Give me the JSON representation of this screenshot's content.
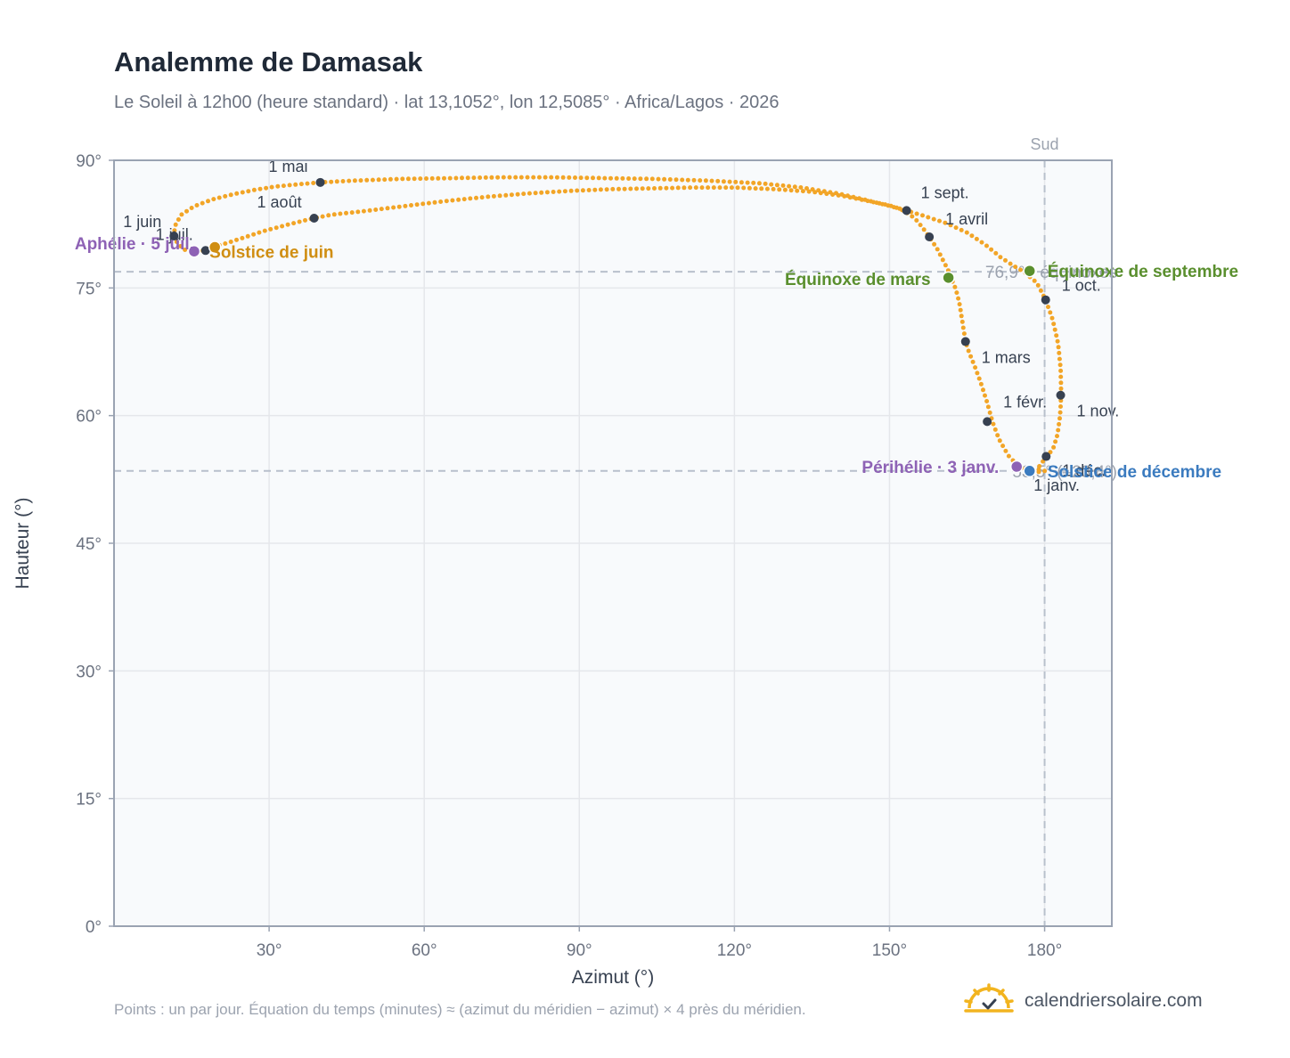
{
  "title": "Analemme de Damasak",
  "subtitle": "Le Soleil à 12h00 (heure standard) · lat 13,1052°, lon 12,5085° · Africa/Lagos · 2026",
  "footnote": "Points : un par jour. Équation du temps (minutes) ≈ (azimut du méridien − azimut) × 4 près du méridien.",
  "brand": {
    "name": "calendriersolaire.com",
    "icon": "sun-logo-icon"
  },
  "colors": {
    "curve": "#f2a527",
    "month_marker": "#374151",
    "equinox": "#5a8f2e",
    "june_solstice": "#d08e12",
    "december_solstice": "#3b7bbf",
    "apsis": "#8e62b5",
    "grid": "#e5e7eb",
    "plot_bg": "#f8fafc",
    "frame": "#9aa3b2"
  },
  "chart_data": {
    "type": "scatter",
    "xlabel": "Azimut (°)",
    "ylabel": "Hauteur (°)",
    "xlim": [
      0,
      193
    ],
    "ylim": [
      0,
      90
    ],
    "x_ticks": [
      "30°",
      "60°",
      "90°",
      "120°",
      "150°",
      "180°"
    ],
    "x_tick_values": [
      30,
      60,
      90,
      120,
      150,
      180
    ],
    "y_ticks": [
      "0°",
      "15°",
      "30°",
      "45°",
      "60°",
      "75°",
      "90°"
    ],
    "y_tick_values": [
      0,
      15,
      30,
      45,
      60,
      75,
      90
    ],
    "grid": true,
    "south_line": {
      "label": "Sud",
      "azimuth": 180
    },
    "reference_lines": [
      {
        "altitude": 76.9,
        "label": "76,9° · équinoxes"
      },
      {
        "altitude": 53.5,
        "label": "53,5° (–23,4°)"
      }
    ],
    "analemma_path": [
      [
        180.0,
        53.5
      ],
      [
        178.0,
        53.3
      ],
      [
        176.5,
        53.6
      ],
      [
        175.0,
        54.0
      ],
      [
        173.0,
        55.3
      ],
      [
        171.2,
        57.2
      ],
      [
        169.9,
        59.3
      ],
      [
        168.9,
        61.5
      ],
      [
        167.8,
        63.6
      ],
      [
        166.6,
        65.6
      ],
      [
        165.4,
        67.4
      ],
      [
        164.7,
        68.7
      ],
      [
        164.1,
        71.0
      ],
      [
        163.5,
        73.3
      ],
      [
        162.8,
        74.9
      ],
      [
        162.0,
        76.0
      ],
      [
        161.4,
        77.0
      ],
      [
        160.4,
        78.2
      ],
      [
        159.3,
        79.5
      ],
      [
        157.7,
        81.0
      ],
      [
        156.5,
        82.0
      ],
      [
        155.3,
        82.9
      ],
      [
        154.0,
        83.6
      ],
      [
        152.0,
        84.3
      ],
      [
        150.0,
        84.7
      ],
      [
        146.0,
        85.2
      ],
      [
        141.0,
        85.8
      ],
      [
        135.0,
        86.3
      ],
      [
        128.0,
        86.6
      ],
      [
        120.0,
        86.8
      ],
      [
        112.0,
        86.8
      ],
      [
        104.0,
        86.7
      ],
      [
        96.0,
        86.6
      ],
      [
        88.0,
        86.4
      ],
      [
        80.0,
        86.1
      ],
      [
        72.0,
        85.7
      ],
      [
        64.0,
        85.2
      ],
      [
        56.0,
        84.6
      ],
      [
        48.0,
        84.0
      ],
      [
        42.0,
        83.6
      ],
      [
        38.7,
        83.2
      ],
      [
        34.0,
        82.5
      ],
      [
        29.0,
        81.7
      ],
      [
        25.0,
        80.9
      ],
      [
        22.0,
        80.3
      ],
      [
        19.5,
        79.9
      ],
      [
        17.7,
        79.4
      ],
      [
        15.5,
        79.3
      ],
      [
        13.5,
        79.5
      ],
      [
        12.2,
        80.3
      ],
      [
        11.6,
        81.1
      ],
      [
        11.8,
        82.3
      ],
      [
        13.0,
        83.6
      ],
      [
        15.5,
        84.6
      ],
      [
        19.0,
        85.4
      ],
      [
        23.0,
        86.0
      ],
      [
        27.0,
        86.5
      ],
      [
        31.0,
        86.9
      ],
      [
        36.0,
        87.2
      ],
      [
        39.9,
        87.4
      ],
      [
        46.0,
        87.6
      ],
      [
        55.0,
        87.8
      ],
      [
        65.0,
        87.9
      ],
      [
        75.0,
        88.0
      ],
      [
        85.0,
        88.0
      ],
      [
        95.0,
        87.9
      ],
      [
        105.0,
        87.8
      ],
      [
        115.0,
        87.6
      ],
      [
        125.0,
        87.3
      ],
      [
        133.0,
        86.8
      ],
      [
        140.0,
        86.1
      ],
      [
        145.0,
        85.4
      ],
      [
        149.0,
        84.8
      ],
      [
        153.3,
        84.1
      ],
      [
        157.0,
        83.4
      ],
      [
        161.0,
        82.6
      ],
      [
        165.0,
        81.5
      ],
      [
        168.5,
        80.1
      ],
      [
        171.5,
        78.6
      ],
      [
        174.0,
        77.6
      ],
      [
        176.0,
        76.9
      ],
      [
        178.5,
        75.6
      ],
      [
        180.2,
        73.6
      ],
      [
        181.6,
        71.2
      ],
      [
        182.6,
        68.5
      ],
      [
        183.1,
        65.5
      ],
      [
        183.2,
        62.4
      ],
      [
        183.0,
        60.0
      ],
      [
        182.5,
        57.8
      ],
      [
        181.6,
        56.0
      ],
      [
        180.3,
        55.2
      ],
      [
        179.2,
        54.2
      ],
      [
        178.5,
        53.7
      ],
      [
        180.0,
        53.5
      ]
    ],
    "month_markers": [
      {
        "label": "1 janv.",
        "azimuth": 177.2,
        "altitude": 53.5
      },
      {
        "label": "1 févr.",
        "azimuth": 168.9,
        "altitude": 59.3
      },
      {
        "label": "1 mars",
        "azimuth": 164.7,
        "altitude": 68.7
      },
      {
        "label": "1 avril",
        "azimuth": 157.7,
        "altitude": 81.0
      },
      {
        "label": "1 mai",
        "azimuth": 39.9,
        "altitude": 87.4
      },
      {
        "label": "1 juin",
        "azimuth": 11.6,
        "altitude": 81.1
      },
      {
        "label": "1 juil.",
        "azimuth": 17.7,
        "altitude": 79.4
      },
      {
        "label": "1 août",
        "azimuth": 38.7,
        "altitude": 83.2
      },
      {
        "label": "1 sept.",
        "azimuth": 153.3,
        "altitude": 84.1
      },
      {
        "label": "1 oct.",
        "azimuth": 180.2,
        "altitude": 73.6
      },
      {
        "label": "1 nov.",
        "azimuth": 183.1,
        "altitude": 62.4
      },
      {
        "label": "1 déc.",
        "azimuth": 180.3,
        "altitude": 55.2
      }
    ],
    "events": [
      {
        "label": "Équinoxe de mars",
        "azimuth": 161.4,
        "altitude": 76.2,
        "kind": "equinox"
      },
      {
        "label": "Équinoxe de septembre",
        "azimuth": 177.1,
        "altitude": 77.0,
        "kind": "equinox"
      },
      {
        "label": "Solstice de juin",
        "azimuth": 19.5,
        "altitude": 79.8,
        "kind": "june_solstice"
      },
      {
        "label": "Solstice de décembre",
        "azimuth": 177.1,
        "altitude": 53.5,
        "kind": "december_solstice"
      },
      {
        "label": "Aphélie · 5 juil.",
        "azimuth": 15.5,
        "altitude": 79.3,
        "kind": "apsis"
      },
      {
        "label": "Périhélie · 3 janv.",
        "azimuth": 174.6,
        "altitude": 54.0,
        "kind": "apsis"
      }
    ]
  }
}
